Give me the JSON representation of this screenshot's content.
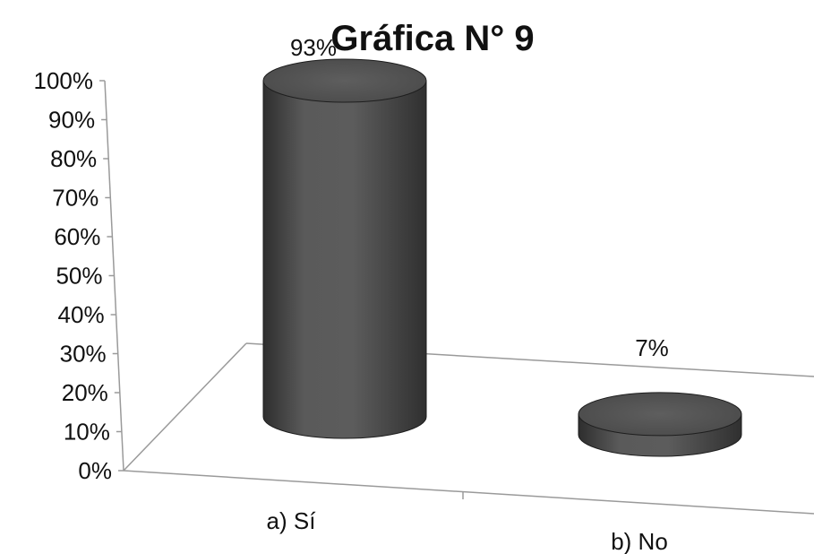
{
  "chart_data": {
    "type": "bar",
    "style": "3d-cylinder",
    "title": "Gráfica N° 9",
    "categories": [
      "a) Sí",
      "b) No"
    ],
    "values": [
      93,
      7
    ],
    "data_labels": [
      "93%",
      "7%"
    ],
    "y_tick_labels": [
      "0%",
      "10%",
      "20%",
      "30%",
      "40%",
      "50%",
      "60%",
      "70%",
      "80%",
      "90%",
      "100%"
    ],
    "ylim": [
      0,
      100
    ],
    "grid": false,
    "legend": "none",
    "colors": {
      "bar": "#555555",
      "bar_dark": "#2e2e2e",
      "bar_light": "#7a7a7a",
      "axis": "#9a9a9a"
    }
  }
}
